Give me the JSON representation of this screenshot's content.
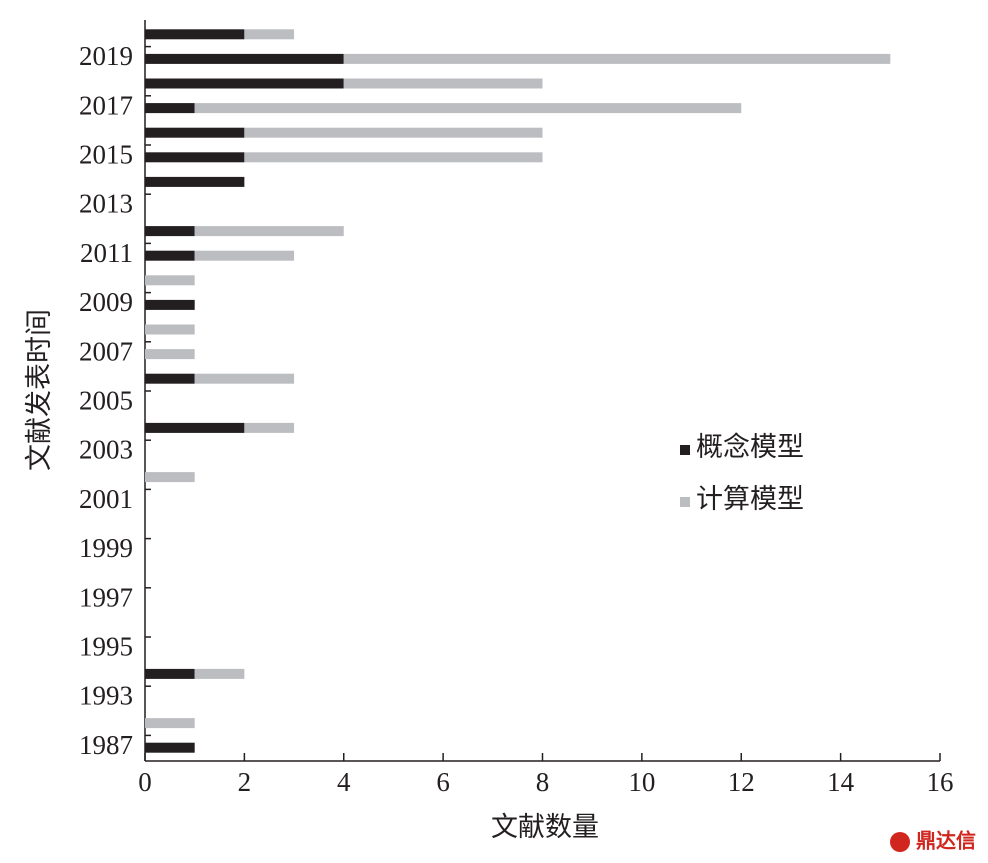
{
  "chart_data": {
    "type": "stacked-barh",
    "xlabel": "文献数量",
    "ylabel": "文献发表时间",
    "categories": [
      "1987",
      null,
      "1993",
      null,
      "1995",
      null,
      "1997",
      null,
      "1999",
      null,
      "2001",
      null,
      "2003",
      null,
      "2005",
      null,
      "2007",
      null,
      "2009",
      null,
      "2011",
      null,
      "2013",
      null,
      "2015",
      null,
      "2017",
      null,
      "2019",
      null
    ],
    "series": [
      {
        "name": "概念模型",
        "color": "#231f20",
        "values": [
          1,
          0,
          0,
          1,
          0,
          0,
          0,
          0,
          0,
          0,
          0,
          0,
          0,
          2,
          0,
          1,
          0,
          0,
          1,
          0,
          1,
          1,
          0,
          2,
          2,
          2,
          1,
          4,
          4,
          2
        ]
      },
      {
        "name": "计算模型",
        "color": "#bcbdc0",
        "values": [
          0,
          1,
          0,
          1,
          0,
          0,
          0,
          0,
          0,
          0,
          0,
          1,
          0,
          1,
          0,
          2,
          1,
          1,
          0,
          1,
          2,
          3,
          0,
          0,
          6,
          6,
          11,
          4,
          11,
          1
        ]
      }
    ],
    "xlim": [
      0,
      16
    ],
    "xticks": [
      0,
      2,
      4,
      6,
      8,
      10,
      12,
      14,
      16
    ],
    "legend": "right"
  },
  "watermark": "鼎达信"
}
